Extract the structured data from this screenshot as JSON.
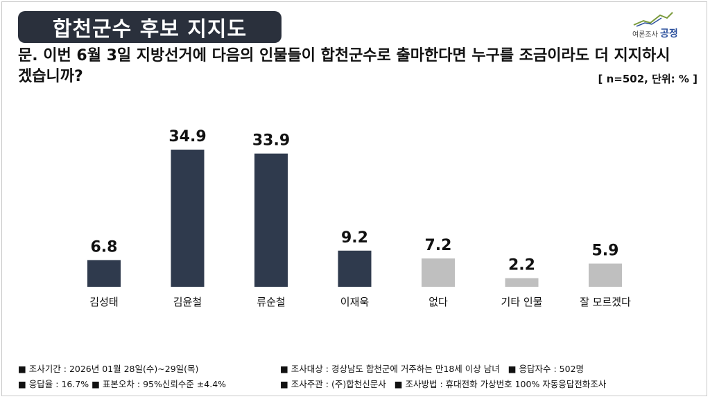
{
  "header": {
    "title": "합천군수 후보 지지도",
    "question": "문. 이번 6월 3일 지방선거에 다음의 인물들이 합천군수로 출마한다면 누구를 조금이라도 더 지지하시겠습니까?",
    "unit_note": "[ n=502, 단위: % ]"
  },
  "logo": {
    "label_small": "여론조사",
    "label_strong": "공정",
    "accent_color": "#2a4f9c",
    "icon": "line-trend-icon"
  },
  "chart_data": {
    "type": "bar",
    "categories": [
      "김성태",
      "김윤철",
      "류순철",
      "이재욱",
      "없다",
      "기타 인물",
      "잘 모르겠다"
    ],
    "values": [
      6.8,
      34.9,
      33.9,
      9.2,
      7.2,
      2.2,
      5.9
    ],
    "value_labels": [
      "6.8",
      "34.9",
      "33.9",
      "9.2",
      "7.2",
      "2.2",
      "5.9"
    ],
    "colors": [
      "#2f3a4d",
      "#2f3a4d",
      "#2f3a4d",
      "#2f3a4d",
      "#bfbfbf",
      "#bfbfbf",
      "#bfbfbf"
    ],
    "title": "",
    "xlabel": "",
    "ylabel": "",
    "ylim": [
      0,
      40
    ],
    "grid": false,
    "legend": "none"
  },
  "footer": {
    "items": [
      [
        "■ 조사기간 : 2026년 01월 28일(수)~29일(목)",
        "■ 조사대상 : 경상남도 합천군에 거주하는 만18세 이상 남녀",
        "■ 응답자수 : 502명"
      ],
      [
        "■ 응답율 : 16.7% ■ 표본오차 : 95%신뢰수준 ±4.4%",
        "■ 조사주관 : (주)합천신문사",
        "■ 조사방법 : 휴대전화 가상번호 100% 자동응답전화조사"
      ]
    ]
  }
}
